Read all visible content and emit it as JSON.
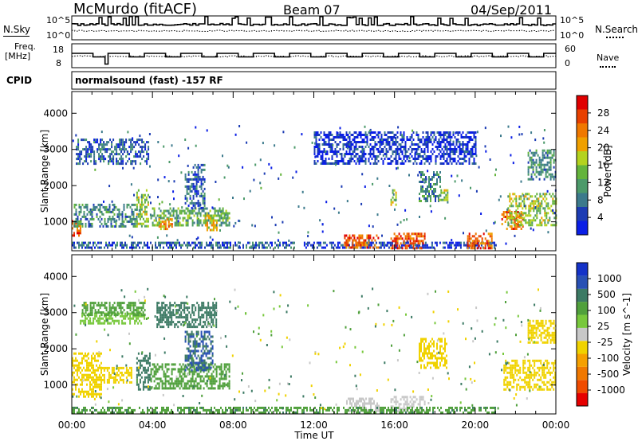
{
  "header": {
    "station": "McMurdo (fitACF)",
    "beam": "Beam 07",
    "date": "04/Sep/2011"
  },
  "strip_labels": {
    "nsky": "N.Sky",
    "nsky_hi": "10^5",
    "nsky_lo": "10^0",
    "nsearch": "N.Search",
    "freq": "Freq.",
    "freq_unit": "[MHz]",
    "freq_hi": "18",
    "freq_lo": "8",
    "nave": "Nave",
    "nave_hi": "60",
    "nave_lo": "0",
    "cpid": "CPID",
    "program": "normalsound (fast) -157 RF"
  },
  "colors": {
    "power_scale": [
      "#0a1ee6",
      "#1c3cb4",
      "#3c7a8c",
      "#4c9a6a",
      "#64b43c",
      "#b4d21e",
      "#f0a000",
      "#f07800",
      "#e84000",
      "#e00000"
    ],
    "velocity_scale": [
      "#1432c8",
      "#2850b4",
      "#3c7a64",
      "#50a03c",
      "#78c83c",
      "#c8c8c8",
      "#f0d200",
      "#f5a000",
      "#f07800",
      "#f04b00",
      "#e60000"
    ]
  },
  "chart_data": [
    {
      "type": "heatmap",
      "name": "power",
      "ylabel": "Slant Range [km]",
      "xlabel": "",
      "yticks": [
        "1000",
        "2000",
        "3000",
        "4000"
      ],
      "ylim": [
        200,
        4600
      ],
      "xlim": [
        0,
        24
      ],
      "colorbar": {
        "label": "Power [dB]",
        "ticks": [
          "4",
          "8",
          "12",
          "16",
          "20",
          "24",
          "28"
        ],
        "range": [
          0,
          32
        ]
      },
      "echo_regions": [
        {
          "t": [
            0.0,
            0.4
          ],
          "r": [
            600,
            1050
          ],
          "v": 28
        },
        {
          "t": [
            0.1,
            3.2
          ],
          "r": [
            900,
            1500
          ],
          "v": 12
        },
        {
          "t": [
            0.2,
            3.8
          ],
          "r": [
            2600,
            3300
          ],
          "v": 8
        },
        {
          "t": [
            3.2,
            3.8
          ],
          "r": [
            900,
            1900
          ],
          "v": 16
        },
        {
          "t": [
            3.9,
            7.8
          ],
          "r": [
            900,
            1400
          ],
          "v": 14
        },
        {
          "t": [
            4.3,
            5.0
          ],
          "r": [
            800,
            1100
          ],
          "v": 24
        },
        {
          "t": [
            5.6,
            6.6
          ],
          "r": [
            1400,
            2600
          ],
          "v": 8
        },
        {
          "t": [
            6.6,
            7.2
          ],
          "r": [
            800,
            1200
          ],
          "v": 22
        },
        {
          "t": [
            0.0,
            11.0
          ],
          "r": [
            300,
            450
          ],
          "v": 8
        },
        {
          "t": [
            11.5,
            21.0
          ],
          "r": [
            300,
            450
          ],
          "v": 6
        },
        {
          "t": [
            13.5,
            15.2
          ],
          "r": [
            300,
            650
          ],
          "v": 26
        },
        {
          "t": [
            15.8,
            17.5
          ],
          "r": [
            300,
            700
          ],
          "v": 26
        },
        {
          "t": [
            15.8,
            16.1
          ],
          "r": [
            1500,
            1900
          ],
          "v": 16
        },
        {
          "t": [
            17.2,
            18.3
          ],
          "r": [
            1600,
            2400
          ],
          "v": 10
        },
        {
          "t": [
            18.2,
            18.6
          ],
          "r": [
            1600,
            1900
          ],
          "v": 16
        },
        {
          "t": [
            19.6,
            20.8
          ],
          "r": [
            300,
            700
          ],
          "v": 26
        },
        {
          "t": [
            21.3,
            22.4
          ],
          "r": [
            800,
            1300
          ],
          "v": 28
        },
        {
          "t": [
            21.6,
            24.0
          ],
          "r": [
            900,
            1800
          ],
          "v": 16
        },
        {
          "t": [
            22.6,
            24.0
          ],
          "r": [
            2200,
            3000
          ],
          "v": 12
        },
        {
          "t": [
            12.0,
            20.0
          ],
          "r": [
            2600,
            3500
          ],
          "v": 6
        }
      ]
    },
    {
      "type": "heatmap",
      "name": "velocity",
      "ylabel": "Slant Range [km]",
      "xlabel": "Time UT",
      "yticks": [
        "1000",
        "2000",
        "3000",
        "4000"
      ],
      "ylim": [
        200,
        4600
      ],
      "xlim": [
        0,
        24
      ],
      "xticks": [
        "00:00",
        "04:00",
        "08:00",
        "12:00",
        "16:00",
        "20:00",
        "00:00"
      ],
      "colorbar": {
        "label": "Velocity [m s^-1]",
        "ticks": [
          "1000",
          "500",
          "100",
          "25",
          "-25",
          "-100",
          "-500",
          "-1000"
        ]
      },
      "echo_regions": [
        {
          "t": [
            0.0,
            1.5
          ],
          "r": [
            700,
            1900
          ],
          "v": -250
        },
        {
          "t": [
            1.5,
            3.0
          ],
          "r": [
            1100,
            1500
          ],
          "v": -250
        },
        {
          "t": [
            0.4,
            3.6
          ],
          "r": [
            2700,
            3000
          ],
          "v": 10
        },
        {
          "t": [
            0.5,
            3.6
          ],
          "r": [
            2950,
            3300
          ],
          "v": 50
        },
        {
          "t": [
            3.2,
            3.9
          ],
          "r": [
            900,
            1900
          ],
          "v": 150
        },
        {
          "t": [
            3.9,
            7.8
          ],
          "r": [
            900,
            1600
          ],
          "v": 60
        },
        {
          "t": [
            5.6,
            7.0
          ],
          "r": [
            1400,
            2500
          ],
          "v": 500
        },
        {
          "t": [
            4.2,
            7.2
          ],
          "r": [
            2600,
            3300
          ],
          "v": 200
        },
        {
          "t": [
            13.6,
            15.2
          ],
          "r": [
            300,
            650
          ],
          "v": -60
        },
        {
          "t": [
            15.8,
            17.5
          ],
          "r": [
            300,
            700
          ],
          "v": -60
        },
        {
          "t": [
            17.2,
            18.6
          ],
          "r": [
            1500,
            2300
          ],
          "v": -250
        },
        {
          "t": [
            21.4,
            24.0
          ],
          "r": [
            900,
            1700
          ],
          "v": -250
        },
        {
          "t": [
            22.6,
            24.0
          ],
          "r": [
            2200,
            2800
          ],
          "v": -250
        },
        {
          "t": [
            0.0,
            21.0
          ],
          "r": [
            250,
            400
          ],
          "v": 80
        }
      ]
    }
  ]
}
